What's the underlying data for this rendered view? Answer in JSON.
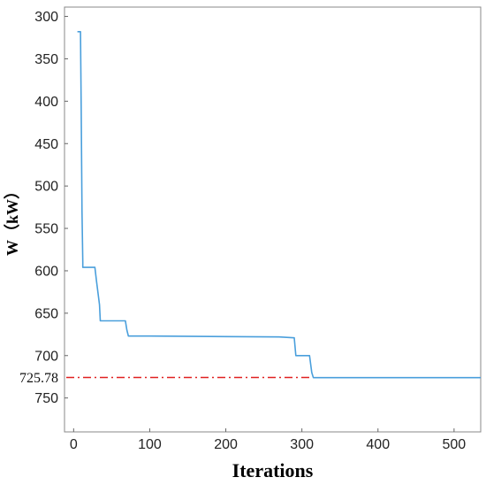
{
  "chart_data": {
    "type": "line",
    "title": "",
    "xlabel": "Iterations",
    "ylabel": "W（kW）",
    "xlim": [
      -12,
      535
    ],
    "ylim": [
      289,
      790
    ],
    "y_inverted": true,
    "xticks": [
      0,
      100,
      200,
      300,
      400,
      500
    ],
    "yticks": [
      300,
      350,
      400,
      450,
      500,
      550,
      600,
      650,
      700,
      750
    ],
    "grid": false,
    "series": [
      {
        "color": "#4a9fdc",
        "x": [
          5,
          9,
          10,
          11,
          12,
          12,
          28,
          30,
          34,
          35,
          68,
          70,
          72,
          100,
          270,
          290,
          292,
          310,
          313,
          315,
          535
        ],
        "y": [
          318,
          318,
          410,
          530,
          590,
          596,
          596,
          612,
          640,
          659,
          659,
          670,
          677,
          677,
          678,
          679,
          700,
          700,
          720,
          726,
          726
        ]
      }
    ],
    "reference_line": {
      "y": 725.78,
      "label": "725.78",
      "x_start": -12,
      "x_end": 313,
      "color": "#e02020",
      "style": "dash-dot"
    }
  }
}
